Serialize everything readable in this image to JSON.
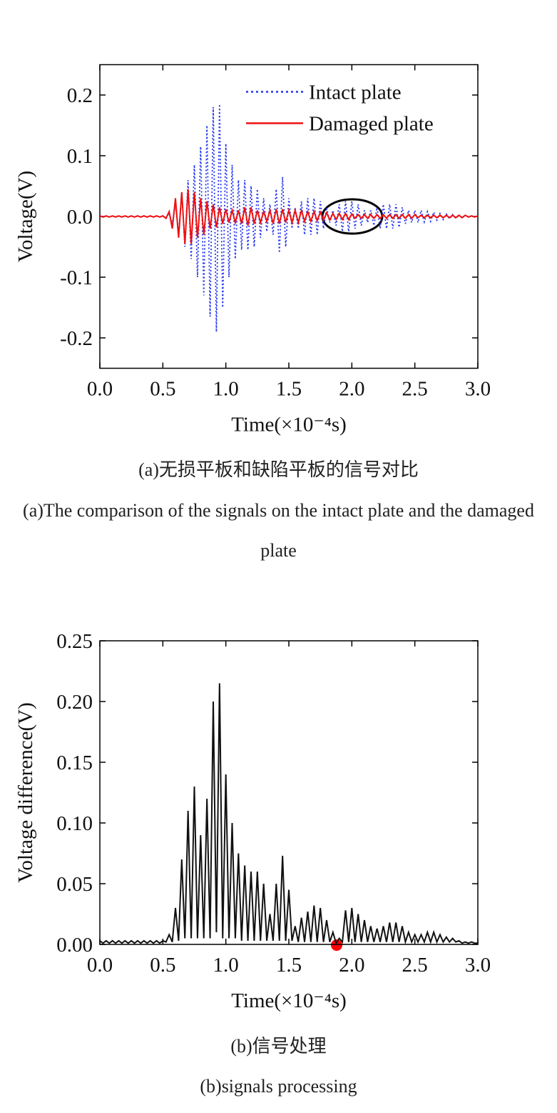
{
  "chart_data": [
    {
      "type": "line",
      "xlabel": "Time(×10⁻⁴s)",
      "ylabel": "Voltage(V)",
      "xlim": [
        0,
        3
      ],
      "ylim": [
        -0.25,
        0.25
      ],
      "xticks": [
        {
          "value": 0,
          "label": "0.0"
        },
        0.5,
        {
          "value": 1,
          "label": "1.0"
        },
        1.5,
        {
          "value": 2,
          "label": "2.0"
        },
        2.5,
        {
          "value": 3,
          "label": "3.0"
        }
      ],
      "yticks": [
        -0.2,
        -0.1,
        {
          "value": 0,
          "label": "0.0"
        },
        0.1,
        0.2
      ],
      "legend": "upper right",
      "x": [
        0,
        0.025,
        0.05,
        0.075,
        0.1,
        0.125,
        0.15,
        0.175,
        0.2,
        0.225,
        0.25,
        0.275,
        0.3,
        0.325,
        0.35,
        0.375,
        0.4,
        0.425,
        0.45,
        0.475,
        0.5,
        0.525,
        0.55,
        0.575,
        0.6,
        0.625,
        0.65,
        0.675,
        0.7,
        0.725,
        0.75,
        0.775,
        0.8,
        0.825,
        0.85,
        0.875,
        0.9,
        0.925,
        0.95,
        0.975,
        1,
        1.025,
        1.05,
        1.075,
        1.1,
        1.125,
        1.15,
        1.175,
        1.2,
        1.225,
        1.25,
        1.275,
        1.3,
        1.325,
        1.35,
        1.375,
        1.4,
        1.425,
        1.45,
        1.475,
        1.5,
        1.525,
        1.55,
        1.575,
        1.6,
        1.625,
        1.65,
        1.675,
        1.7,
        1.725,
        1.75,
        1.775,
        1.8,
        1.825,
        1.85,
        1.875,
        1.9,
        1.925,
        1.95,
        1.975,
        2,
        2.025,
        2.05,
        2.075,
        2.1,
        2.125,
        2.15,
        2.175,
        2.2,
        2.225,
        2.25,
        2.275,
        2.3,
        2.325,
        2.35,
        2.375,
        2.4,
        2.425,
        2.45,
        2.475,
        2.5,
        2.525,
        2.55,
        2.575,
        2.6,
        2.625,
        2.65,
        2.675,
        2.7,
        2.725,
        2.75,
        2.775,
        2.8,
        2.825,
        2.85,
        2.875,
        2.9,
        2.925,
        2.95,
        2.975,
        3
      ],
      "series": [
        {
          "name": "Intact plate",
          "color": "#2233ee",
          "line_style": "dotted",
          "values": [
            0.001,
            -0.001,
            0.001,
            -0.001,
            0.001,
            -0.001,
            0.001,
            -0.001,
            0.001,
            -0.001,
            0.001,
            -0.001,
            0.001,
            -0.001,
            0.001,
            -0.001,
            0.001,
            -0.001,
            0.001,
            -0.001,
            0.001,
            -0.003,
            0.006,
            -0.012,
            0.02,
            -0.03,
            0.04,
            -0.05,
            0.06,
            -0.07,
            0.085,
            -0.1,
            0.115,
            -0.13,
            0.15,
            -0.165,
            0.18,
            -0.19,
            0.185,
            -0.15,
            0.12,
            -0.1,
            0.085,
            -0.07,
            0.06,
            -0.055,
            0.06,
            -0.055,
            0.05,
            -0.05,
            0.045,
            -0.035,
            0.03,
            -0.025,
            0.02,
            -0.03,
            0.045,
            -0.06,
            0.065,
            -0.05,
            0.03,
            -0.02,
            0.015,
            -0.02,
            0.025,
            -0.03,
            0.03,
            -0.03,
            0.03,
            -0.03,
            0.025,
            -0.02,
            0.015,
            -0.01,
            0.01,
            -0.015,
            0.02,
            -0.025,
            0.025,
            -0.025,
            0.025,
            -0.02,
            0.02,
            -0.015,
            0.01,
            -0.01,
            0.01,
            -0.015,
            0.015,
            -0.02,
            0.02,
            -0.02,
            0.02,
            -0.02,
            0.02,
            -0.018,
            0.015,
            -0.012,
            0.01,
            -0.01,
            0.01,
            -0.01,
            0.01,
            -0.009,
            0.008,
            -0.008,
            0.007,
            -0.006,
            0.005,
            -0.005,
            0.004,
            -0.004,
            0.003,
            -0.003,
            0.002,
            -0.002,
            0.002,
            -0.001,
            0.001,
            -0.001,
            0.001
          ]
        },
        {
          "name": "Damaged plate",
          "color": "#ee1111",
          "line_style": "solid",
          "values": [
            0.001,
            -0.001,
            0.001,
            -0.001,
            0.001,
            -0.001,
            0.001,
            -0.001,
            0.001,
            -0.001,
            0.001,
            -0.001,
            0.001,
            -0.001,
            0.001,
            -0.001,
            0.001,
            -0.001,
            0.001,
            -0.001,
            0.001,
            -0.003,
            0.008,
            -0.02,
            0.03,
            -0.035,
            0.04,
            -0.045,
            0.045,
            -0.045,
            0.04,
            -0.035,
            0.03,
            -0.03,
            0.025,
            -0.02,
            0.02,
            -0.018,
            0.015,
            -0.012,
            0.012,
            -0.01,
            0.01,
            -0.01,
            0.01,
            -0.012,
            0.015,
            -0.015,
            0.015,
            -0.012,
            0.01,
            -0.01,
            0.008,
            -0.008,
            0.01,
            -0.012,
            0.012,
            -0.012,
            0.012,
            -0.01,
            0.01,
            -0.01,
            0.01,
            -0.01,
            0.01,
            -0.008,
            0.008,
            -0.008,
            0.008,
            -0.007,
            0.007,
            -0.006,
            0.006,
            -0.006,
            0.005,
            -0.005,
            0.005,
            -0.005,
            0.005,
            -0.005,
            0.004,
            -0.003,
            0.003,
            -0.003,
            0.003,
            -0.003,
            0.003,
            -0.003,
            0.003,
            -0.003,
            0.003,
            -0.003,
            0.003,
            -0.003,
            0.003,
            -0.003,
            0.003,
            -0.003,
            0.003,
            -0.003,
            0.003,
            -0.002,
            0.002,
            -0.002,
            0.002,
            -0.002,
            0.002,
            -0.002,
            0.002,
            -0.002,
            0.002,
            -0.002,
            0.002,
            -0.002,
            0.002,
            -0.002,
            0.002,
            -0.001,
            0.001,
            -0.001,
            0.001
          ]
        }
      ]
    },
    {
      "type": "line",
      "xlabel": "Time(×10⁻⁴s)",
      "ylabel": "Voltage difference(V)",
      "xlim": [
        0,
        3
      ],
      "ylim": [
        0,
        0.25
      ],
      "xticks": [
        {
          "value": 0,
          "label": "0.0"
        },
        0.5,
        {
          "value": 1,
          "label": "1.0"
        },
        1.5,
        {
          "value": 2,
          "label": "2.0"
        },
        2.5,
        {
          "value": 3,
          "label": "3.0"
        }
      ],
      "yticks": [
        {
          "value": 0,
          "label": "0.00"
        },
        0.05,
        {
          "value": 0.1,
          "label": "0.10"
        },
        0.15,
        {
          "value": 0.2,
          "label": "0.20"
        },
        0.25
      ],
      "x": [
        0,
        0.025,
        0.05,
        0.075,
        0.1,
        0.125,
        0.15,
        0.175,
        0.2,
        0.225,
        0.25,
        0.275,
        0.3,
        0.325,
        0.35,
        0.375,
        0.4,
        0.425,
        0.45,
        0.475,
        0.5,
        0.525,
        0.55,
        0.575,
        0.6,
        0.625,
        0.65,
        0.675,
        0.7,
        0.725,
        0.75,
        0.775,
        0.8,
        0.825,
        0.85,
        0.875,
        0.9,
        0.925,
        0.95,
        0.975,
        1,
        1.025,
        1.05,
        1.075,
        1.1,
        1.125,
        1.15,
        1.175,
        1.2,
        1.225,
        1.25,
        1.275,
        1.3,
        1.325,
        1.35,
        1.375,
        1.4,
        1.425,
        1.45,
        1.475,
        1.5,
        1.525,
        1.55,
        1.575,
        1.6,
        1.625,
        1.65,
        1.675,
        1.7,
        1.725,
        1.75,
        1.775,
        1.8,
        1.825,
        1.85,
        1.875,
        1.9,
        1.925,
        1.95,
        1.975,
        2,
        2.025,
        2.05,
        2.075,
        2.1,
        2.125,
        2.15,
        2.175,
        2.2,
        2.225,
        2.25,
        2.275,
        2.3,
        2.325,
        2.35,
        2.375,
        2.4,
        2.425,
        2.45,
        2.475,
        2.5,
        2.525,
        2.55,
        2.575,
        2.6,
        2.625,
        2.65,
        2.675,
        2.7,
        2.725,
        2.75,
        2.775,
        2.8,
        2.825,
        2.85,
        2.875,
        2.9,
        2.925,
        2.95,
        2.975,
        3
      ],
      "color": "#111111",
      "values": [
        0.003,
        0.001,
        0.003,
        0.001,
        0.003,
        0.001,
        0.003,
        0.001,
        0.003,
        0.001,
        0.003,
        0.001,
        0.003,
        0.001,
        0.003,
        0.001,
        0.003,
        0.001,
        0.003,
        0.001,
        0.003,
        0.002,
        0.008,
        0.002,
        0.03,
        0.003,
        0.07,
        0.005,
        0.11,
        0.005,
        0.13,
        0.005,
        0.09,
        0.005,
        0.12,
        0.005,
        0.2,
        0.01,
        0.215,
        0.005,
        0.14,
        0.005,
        0.1,
        0.005,
        0.075,
        0.003,
        0.065,
        0.003,
        0.06,
        0.003,
        0.06,
        0.003,
        0.05,
        0.003,
        0.025,
        0.003,
        0.05,
        0.003,
        0.073,
        0.003,
        0.045,
        0.003,
        0.015,
        0.002,
        0.022,
        0.002,
        0.027,
        0.002,
        0.032,
        0.002,
        0.03,
        0.002,
        0.02,
        0.002,
        0.01,
        0.001,
        0.005,
        0.002,
        0.028,
        0.002,
        0.03,
        0.002,
        0.025,
        0.002,
        0.02,
        0.002,
        0.015,
        0.002,
        0.013,
        0.002,
        0.015,
        0.002,
        0.018,
        0.002,
        0.018,
        0.002,
        0.015,
        0.002,
        0.01,
        0.002,
        0.008,
        0.002,
        0.008,
        0.002,
        0.01,
        0.002,
        0.01,
        0.002,
        0.008,
        0.002,
        0.006,
        0.002,
        0.005,
        0.002,
        0.003,
        0.001,
        0.002,
        0.001,
        0.002,
        0.001,
        0.001
      ]
    }
  ],
  "captions": [
    "(a)无损平板和缺陷平板的信号对比",
    "(a)The comparison of the signals on the intact plate and the damaged plate",
    "(b)信号处理",
    "(b)signals processing"
  ]
}
